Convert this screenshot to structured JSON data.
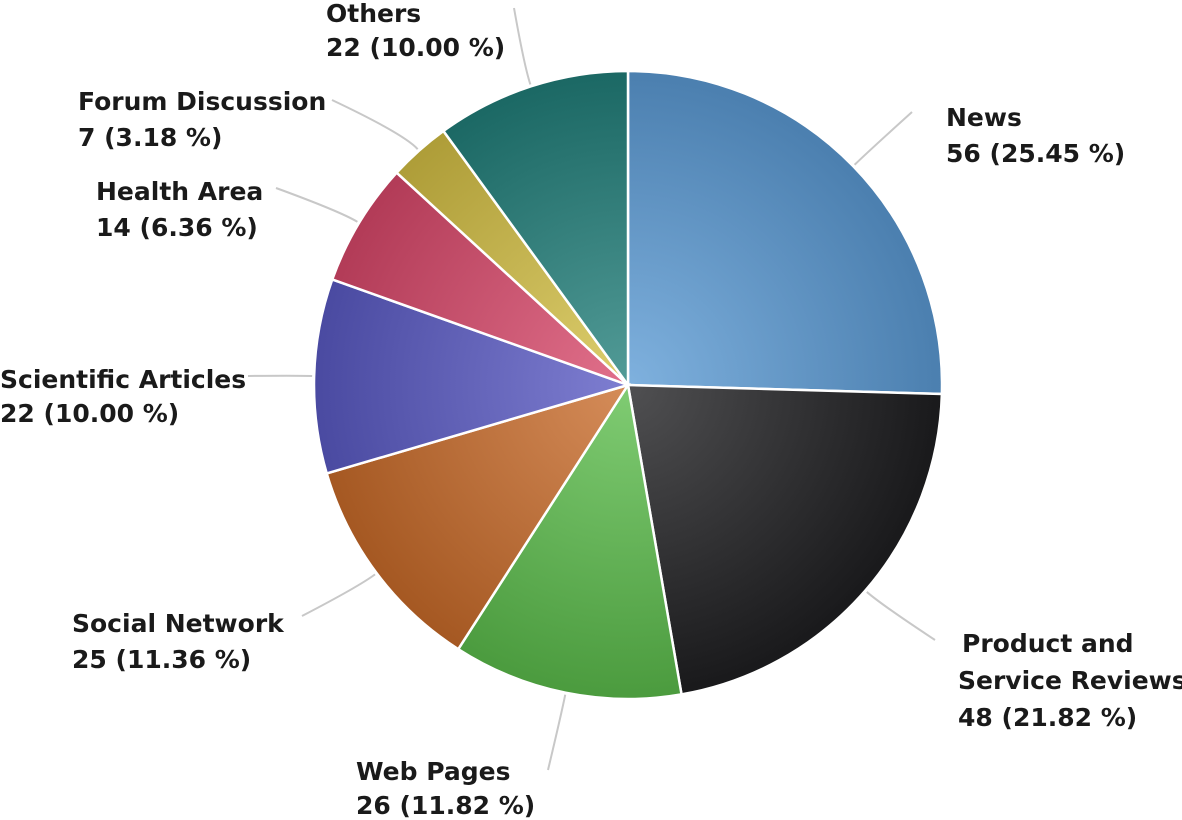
{
  "chart_data": {
    "type": "pie",
    "title": "",
    "slices": [
      {
        "name": "News",
        "value": 56,
        "percent": "25.45 %",
        "color": "#5b9bd5"
      },
      {
        "name": "Product and Service Reviews",
        "value": 48,
        "percent": "21.82 %",
        "color": "#1f1f21"
      },
      {
        "name": "Web Pages",
        "value": 26,
        "percent": "11.82 %",
        "color": "#5cbd4c"
      },
      {
        "name": "Social Network",
        "value": 25,
        "percent": "11.36 %",
        "color": "#c96b2a"
      },
      {
        "name": "Scientific Articles",
        "value": 22,
        "percent": "10.00 %",
        "color": "#5a5ac4"
      },
      {
        "name": "Health Area",
        "value": 14,
        "percent": "6.36 %",
        "color": "#d9486a"
      },
      {
        "name": "Forum Discussion",
        "value": 7,
        "percent": "3.18 %",
        "color": "#d4c044"
      },
      {
        "name": "Others",
        "value": 22,
        "percent": "10.00 %",
        "color": "#217f7a"
      }
    ],
    "start_angle": "12 o'clock",
    "direction": "clockwise",
    "legend": "none",
    "data_labels": "outside with connector lines"
  }
}
